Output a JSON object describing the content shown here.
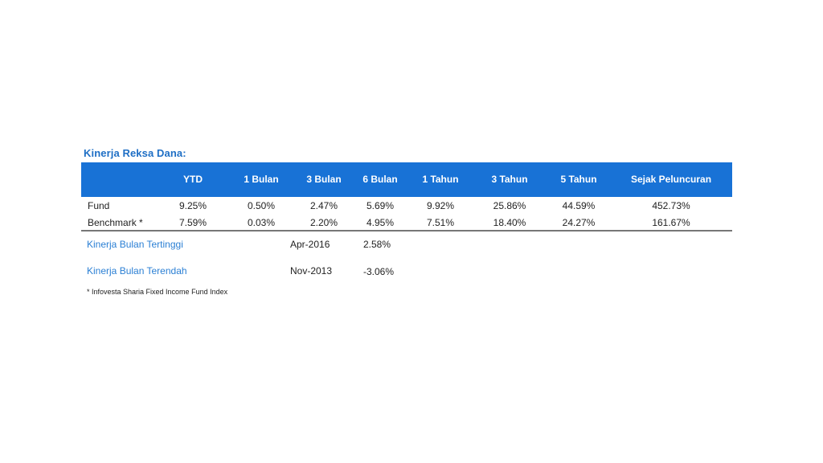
{
  "title": "Kinerja Reksa Dana:",
  "table": {
    "headers": [
      "",
      "YTD",
      "1 Bulan",
      "3 Bulan",
      "6 Bulan",
      "1 Tahun",
      "3 Tahun",
      "5 Tahun",
      "Sejak Peluncuran"
    ],
    "rows": [
      {
        "label": "Fund",
        "values": [
          "9.25%",
          "0.50%",
          "2.47%",
          "5.69%",
          "9.92%",
          "25.86%",
          "44.59%",
          "452.73%"
        ]
      },
      {
        "label": "Benchmark *",
        "values": [
          "7.59%",
          "0.03%",
          "2.20%",
          "4.95%",
          "7.51%",
          "18.40%",
          "24.27%",
          "161.67%"
        ]
      }
    ]
  },
  "stats": [
    {
      "label": "Kinerja Bulan Tertinggi",
      "date": "Apr-2016",
      "value": "2.58%"
    },
    {
      "label": "Kinerja Bulan Terendah",
      "date": "Nov-2013",
      "value": "-3.06%"
    }
  ],
  "footnote": "* Infovesta Sharia Fixed Income Fund Index",
  "colors": {
    "header_bg": "#1872d6",
    "title": "#1f6fc5",
    "stat_label": "#2a7fd4"
  }
}
